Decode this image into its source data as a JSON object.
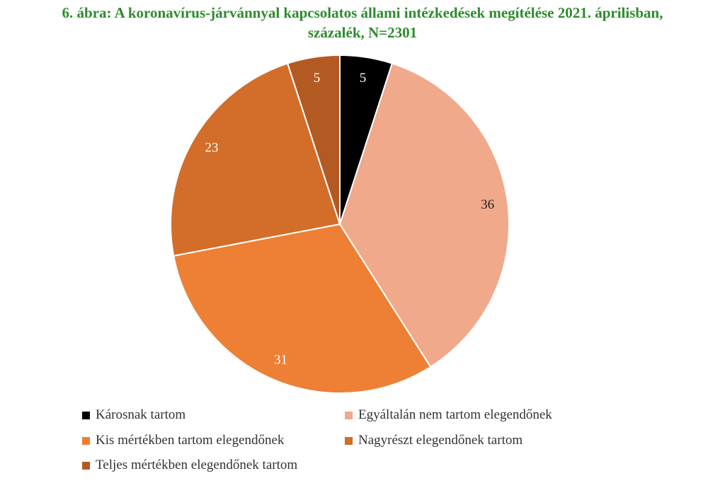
{
  "chart_data": {
    "type": "pie",
    "title_line1": "6. ábra: A koronavírus-járvánnyal kapcsolatos állami intézkedések megítélése 2021. áprilisban,",
    "title_line2": "százalék, N=2301",
    "slices": [
      {
        "label": "Károsnak tartom",
        "value": 5,
        "color": "#000000",
        "label_color": "#ffffff"
      },
      {
        "label": "Egyáltalán nem tartom elegendőnek",
        "value": 36,
        "color": "#f0a98b",
        "label_color": "#222222"
      },
      {
        "label": "Kis mértékben tartom elegendőnek",
        "value": 31,
        "color": "#ed8034",
        "label_color": "#ffffff"
      },
      {
        "label": "Nagyrészt elegendőnek tartom",
        "value": 23,
        "color": "#d26d2a",
        "label_color": "#ffffff"
      },
      {
        "label": "Teljes mértékben elegendőnek tartom",
        "value": 5,
        "color": "#b35a23",
        "label_color": "#ffffff"
      }
    ],
    "legend_position": "bottom"
  }
}
